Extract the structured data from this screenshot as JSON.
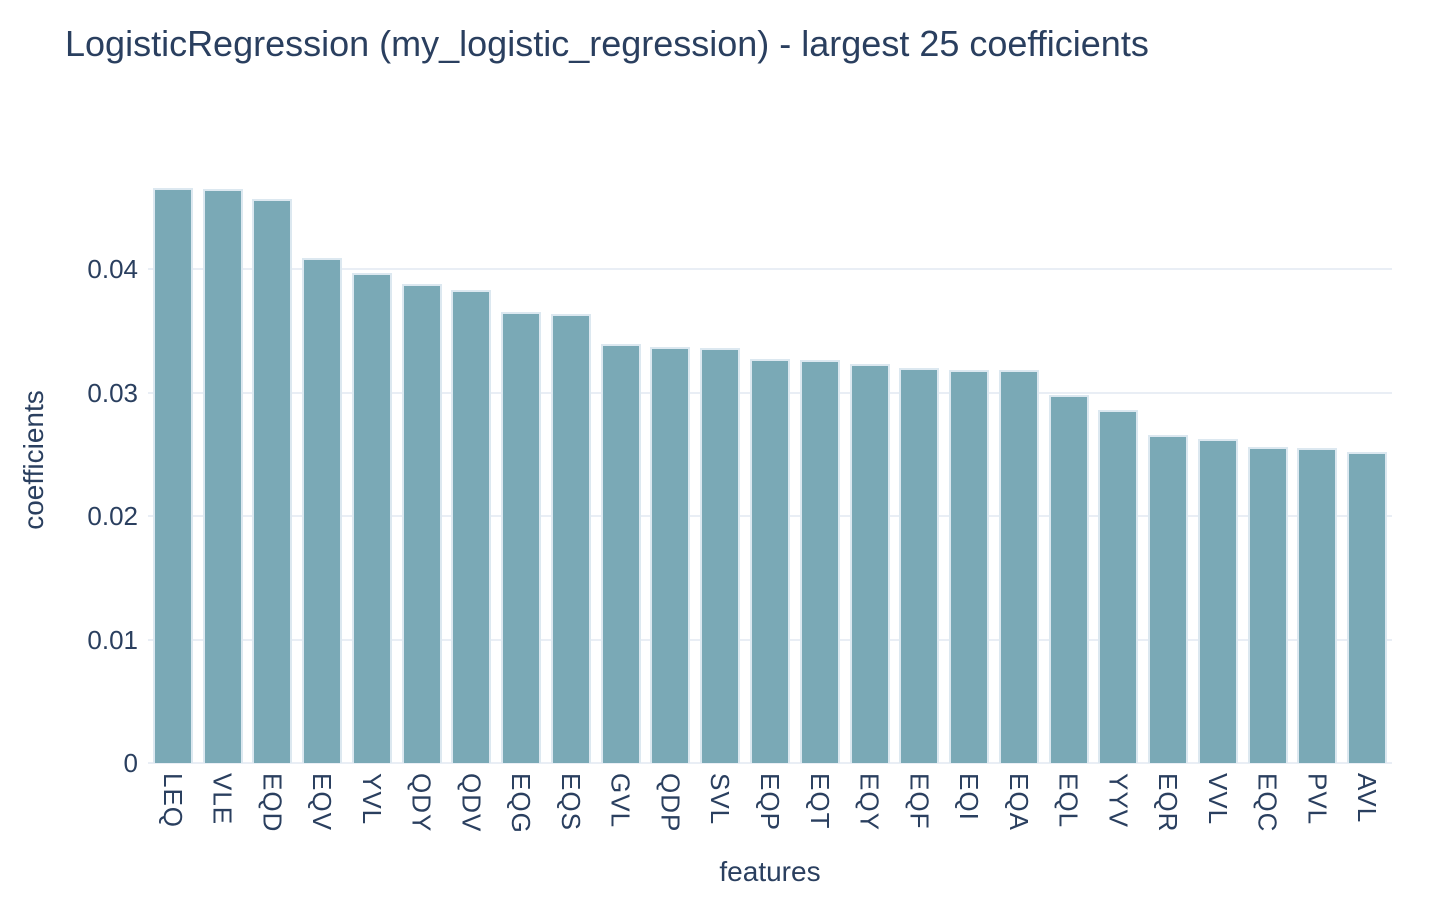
{
  "chart_data": {
    "type": "bar",
    "title": "LogisticRegression (my_logistic_regression) - largest 25 coefficients",
    "xlabel": "features",
    "ylabel": "coefficients",
    "categories": [
      "LEQ",
      "VLE",
      "EQD",
      "EQV",
      "YVL",
      "QDY",
      "QDV",
      "EQG",
      "EQS",
      "GVL",
      "QDP",
      "SVL",
      "EQP",
      "EQT",
      "EQY",
      "EQF",
      "EQI",
      "EQA",
      "EQL",
      "YYV",
      "EQR",
      "VVL",
      "EQC",
      "PVL",
      "AVL"
    ],
    "values": [
      0.0466,
      0.0465,
      0.0457,
      0.0409,
      0.0397,
      0.0388,
      0.0383,
      0.0365,
      0.0364,
      0.0339,
      0.0337,
      0.0336,
      0.0327,
      0.0326,
      0.0323,
      0.032,
      0.0318,
      0.0318,
      0.0298,
      0.0286,
      0.0266,
      0.0262,
      0.0256,
      0.0255,
      0.0252
    ],
    "ylim": [
      0,
      0.0494
    ],
    "yticks": [
      0,
      0.01,
      0.02,
      0.03,
      0.04
    ],
    "ytick_labels": [
      "0",
      "0.01",
      "0.02",
      "0.03",
      "0.04"
    ],
    "grid": true,
    "legend_position": "none",
    "colors": {
      "bar_fill": "#7aa9b6",
      "bar_edge": "#dce8f0",
      "text": "#2a3f5f",
      "gridline": "#e9eef5",
      "background": "#ffffff"
    }
  }
}
